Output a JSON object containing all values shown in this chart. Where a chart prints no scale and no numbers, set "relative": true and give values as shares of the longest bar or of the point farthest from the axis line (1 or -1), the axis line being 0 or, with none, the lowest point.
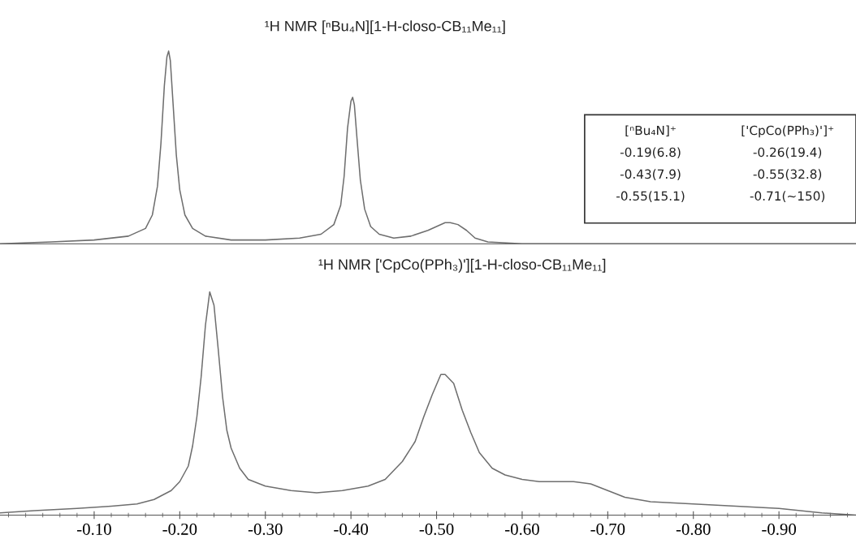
{
  "chart_data": [
    {
      "type": "line",
      "title": "¹H NMR [ⁿBu₄N][1-H-closo-CB₁₁Me₁₁]",
      "relative": true,
      "tick_labels": false,
      "grid": false,
      "legend": false,
      "marker": "none",
      "line_style": "solid",
      "xlim": [
        0.01,
        -0.99
      ],
      "annotations": [
        "[ⁿBu₄N]⁺",
        "['CpCo(PPh₃)']⁺",
        "-0.19(6.8)",
        "-0.26(19.4)",
        "-0.43(7.9)",
        "-0.55(32.8)",
        "-0.55(15.1)",
        "-0.71(~150)"
      ],
      "series": [
        {
          "color": "#6e6e6e",
          "x": [
            0.01,
            -0.05,
            -0.1,
            -0.14,
            -0.16,
            -0.168,
            -0.174,
            -0.178,
            -0.182,
            -0.185,
            -0.187,
            -0.189,
            -0.192,
            -0.196,
            -0.2,
            -0.206,
            -0.215,
            -0.23,
            -0.26,
            -0.3,
            -0.34,
            -0.365,
            -0.38,
            -0.388,
            -0.392,
            -0.396,
            -0.4,
            -0.402,
            -0.404,
            -0.407,
            -0.411,
            -0.416,
            -0.423,
            -0.433,
            -0.45,
            -0.47,
            -0.49,
            -0.5,
            -0.51,
            -0.516,
            -0.525,
            -0.535,
            -0.545,
            -0.56,
            -0.6,
            -0.7,
            -0.8,
            -0.9,
            -0.99
          ],
          "values": [
            0.0,
            0.01,
            0.02,
            0.04,
            0.08,
            0.15,
            0.3,
            0.52,
            0.82,
            0.97,
            1.0,
            0.95,
            0.74,
            0.46,
            0.28,
            0.15,
            0.08,
            0.04,
            0.02,
            0.02,
            0.03,
            0.05,
            0.1,
            0.2,
            0.35,
            0.6,
            0.74,
            0.76,
            0.72,
            0.55,
            0.33,
            0.18,
            0.09,
            0.05,
            0.03,
            0.04,
            0.07,
            0.09,
            0.11,
            0.11,
            0.1,
            0.07,
            0.03,
            0.01,
            0.0,
            0.0,
            0.0,
            0.0,
            0.0
          ]
        }
      ]
    },
    {
      "type": "line",
      "title": "¹H NMR ['CpCo(PPh₃)'][1-H-closo-CB₁₁Me₁₁]",
      "relative": true,
      "tick_labels": "x",
      "grid": false,
      "legend": false,
      "marker": "none",
      "line_style": "solid",
      "xlim": [
        0.01,
        -0.99
      ],
      "xticks": [
        {
          "value": 0.0,
          "label": null
        },
        {
          "value": -0.02,
          "label": null
        },
        {
          "value": -0.04,
          "label": null
        },
        {
          "value": -0.06,
          "label": null
        },
        {
          "value": -0.08,
          "label": null
        },
        {
          "value": -0.1,
          "label": "-0.10"
        },
        {
          "value": -0.12,
          "label": null
        },
        {
          "value": -0.14,
          "label": null
        },
        {
          "value": -0.16,
          "label": null
        },
        {
          "value": -0.18,
          "label": null
        },
        {
          "value": -0.2,
          "label": "-0.20"
        },
        {
          "value": -0.22,
          "label": null
        },
        {
          "value": -0.24,
          "label": null
        },
        {
          "value": -0.26,
          "label": null
        },
        {
          "value": -0.28,
          "label": null
        },
        {
          "value": -0.3,
          "label": "-0.30"
        },
        {
          "value": -0.32,
          "label": null
        },
        {
          "value": -0.34,
          "label": null
        },
        {
          "value": -0.36,
          "label": null
        },
        {
          "value": -0.38,
          "label": null
        },
        {
          "value": -0.4,
          "label": "-0.40"
        },
        {
          "value": -0.42,
          "label": null
        },
        {
          "value": -0.44,
          "label": null
        },
        {
          "value": -0.46,
          "label": null
        },
        {
          "value": -0.48,
          "label": null
        },
        {
          "value": -0.5,
          "label": "-0.50"
        },
        {
          "value": -0.52,
          "label": null
        },
        {
          "value": -0.54,
          "label": null
        },
        {
          "value": -0.56,
          "label": null
        },
        {
          "value": -0.58,
          "label": null
        },
        {
          "value": -0.6,
          "label": "-0.60"
        },
        {
          "value": -0.62,
          "label": null
        },
        {
          "value": -0.64,
          "label": null
        },
        {
          "value": -0.66,
          "label": null
        },
        {
          "value": -0.68,
          "label": null
        },
        {
          "value": -0.7,
          "label": "-0.70"
        },
        {
          "value": -0.72,
          "label": null
        },
        {
          "value": -0.74,
          "label": null
        },
        {
          "value": -0.76,
          "label": null
        },
        {
          "value": -0.78,
          "label": null
        },
        {
          "value": -0.8,
          "label": "-0.80"
        },
        {
          "value": -0.82,
          "label": null
        },
        {
          "value": -0.84,
          "label": null
        },
        {
          "value": -0.86,
          "label": null
        },
        {
          "value": -0.88,
          "label": null
        },
        {
          "value": -0.9,
          "label": "-0.90"
        },
        {
          "value": -0.92,
          "label": null
        },
        {
          "value": -0.94,
          "label": null
        },
        {
          "value": -0.96,
          "label": null
        },
        {
          "value": -0.98,
          "label": null
        }
      ],
      "series": [
        {
          "color": "#6e6e6e",
          "x": [
            0.01,
            -0.03,
            -0.08,
            -0.12,
            -0.15,
            -0.17,
            -0.19,
            -0.2,
            -0.21,
            -0.215,
            -0.22,
            -0.225,
            -0.23,
            -0.235,
            -0.24,
            -0.245,
            -0.25,
            -0.255,
            -0.26,
            -0.27,
            -0.28,
            -0.3,
            -0.33,
            -0.36,
            -0.39,
            -0.42,
            -0.44,
            -0.46,
            -0.475,
            -0.485,
            -0.495,
            -0.505,
            -0.51,
            -0.52,
            -0.53,
            -0.54,
            -0.55,
            -0.565,
            -0.58,
            -0.6,
            -0.62,
            -0.64,
            -0.66,
            -0.68,
            -0.7,
            -0.72,
            -0.75,
            -0.8,
            -0.85,
            -0.9,
            -0.95,
            -0.99
          ],
          "values": [
            0.01,
            0.02,
            0.03,
            0.04,
            0.05,
            0.07,
            0.11,
            0.15,
            0.22,
            0.31,
            0.44,
            0.62,
            0.85,
            1.0,
            0.94,
            0.74,
            0.53,
            0.38,
            0.3,
            0.21,
            0.16,
            0.13,
            0.11,
            0.1,
            0.11,
            0.13,
            0.16,
            0.24,
            0.33,
            0.44,
            0.54,
            0.63,
            0.63,
            0.59,
            0.47,
            0.37,
            0.28,
            0.21,
            0.18,
            0.16,
            0.15,
            0.15,
            0.15,
            0.14,
            0.11,
            0.08,
            0.06,
            0.05,
            0.04,
            0.03,
            0.01,
            0.0
          ]
        }
      ]
    }
  ]
}
